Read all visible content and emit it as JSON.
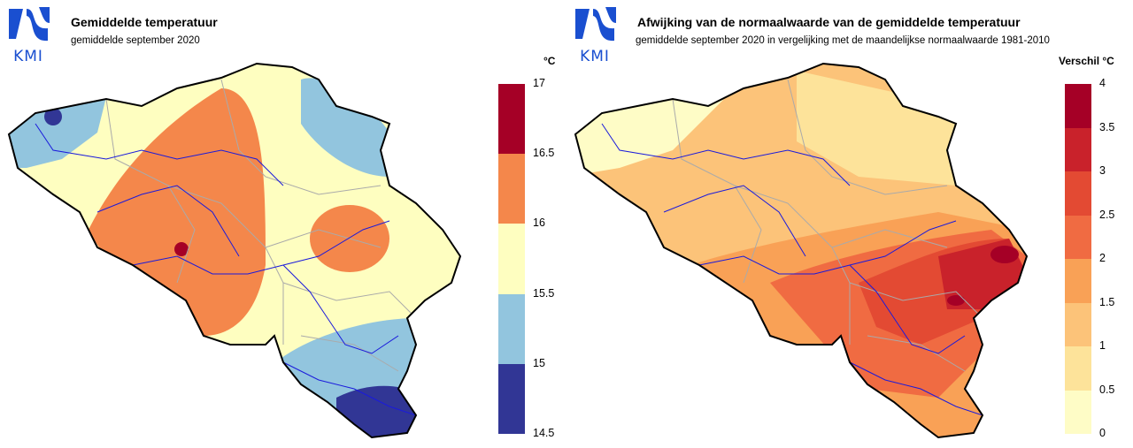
{
  "left": {
    "logo": {
      "text": "KMI",
      "icon": "kmi-logo-icon",
      "color": "#1a4fd0"
    },
    "title": "Gemiddelde temperatuur",
    "subtitle": "gemiddelde september 2020",
    "unit": "°C",
    "legend": {
      "ticks": [
        "17",
        "16.5",
        "16",
        "15.5",
        "15",
        "14.5"
      ],
      "bins": [
        {
          "from": 16.5,
          "to": 17.0,
          "color": "#a50026"
        },
        {
          "from": 16.0,
          "to": 16.5,
          "color": "#f4874b"
        },
        {
          "from": 15.5,
          "to": 16.0,
          "color": "#fefec0"
        },
        {
          "from": 15.0,
          "to": 15.5,
          "color": "#92c5de"
        },
        {
          "from": 14.5,
          "to": 15.0,
          "color": "#313695"
        }
      ]
    }
  },
  "right": {
    "logo": {
      "text": "KMI",
      "icon": "kmi-logo-icon",
      "color": "#1a4fd0"
    },
    "title": "Afwijking van de normaalwaarde van de gemiddelde temperatuur",
    "subtitle": "gemiddelde september 2020 in vergelijking met de maandelijkse normaalwaarde 1981-2010",
    "unit": "Verschil °C",
    "legend": {
      "ticks": [
        "4",
        "3.5",
        "3",
        "2.5",
        "2",
        "1.5",
        "1",
        "0.5",
        "0"
      ],
      "bins": [
        {
          "from": 3.5,
          "to": 4.0,
          "color": "#a50026"
        },
        {
          "from": 3.0,
          "to": 3.5,
          "color": "#c9222b"
        },
        {
          "from": 2.5,
          "to": 3.0,
          "color": "#e34a33"
        },
        {
          "from": 2.0,
          "to": 2.5,
          "color": "#f06b42"
        },
        {
          "from": 1.5,
          "to": 2.0,
          "color": "#f9a156"
        },
        {
          "from": 1.0,
          "to": 1.5,
          "color": "#fcc379"
        },
        {
          "from": 0.5,
          "to": 1.0,
          "color": "#fde39a"
        },
        {
          "from": 0.0,
          "to": 0.5,
          "color": "#fefcc6"
        }
      ]
    }
  }
}
